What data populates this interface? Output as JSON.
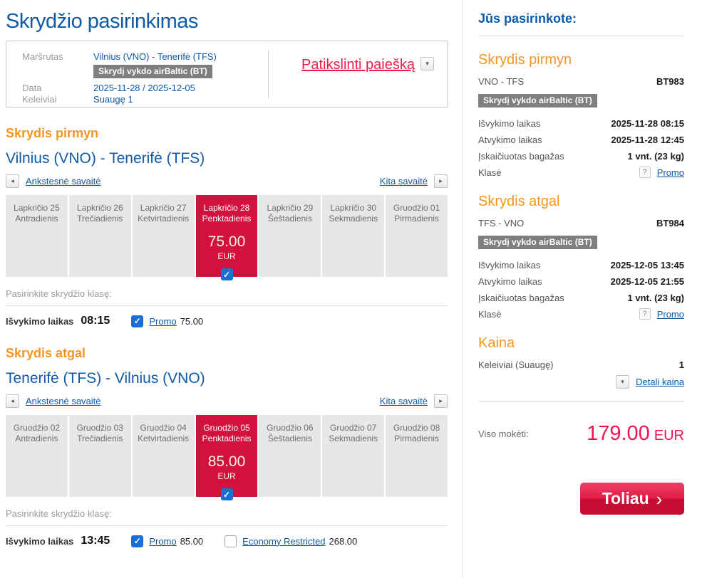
{
  "icons": {
    "prev_arrow": "◂",
    "next_arrow": "▸",
    "dropdown_arrow": "▾",
    "check": "✓",
    "question": "?",
    "button_chevron": "›"
  },
  "page": {
    "title": "Skrydžio pasirinkimas"
  },
  "search": {
    "route_label": "Maršrutas",
    "route_value": "Vilnius (VNO) - Tenerifė (TFS)",
    "operator_badge": "Skrydį vykdo airBaltic (BT)",
    "date_label": "Data",
    "date_value": "2025-11-28 / 2025-12-05",
    "passengers_label": "Keleiviai",
    "passengers_value": "Suaugę 1",
    "refine_link": "Patikslinti paiešką"
  },
  "outbound": {
    "section_title": "Skrydis pirmyn",
    "route": "Vilnius (VNO) - Tenerifė (TFS)",
    "prev_week": "Ankstesnė savaitė",
    "next_week": "Kita savaitė",
    "days": [
      {
        "date": "Lapkričio 25",
        "weekday": "Antradienis"
      },
      {
        "date": "Lapkričio 26",
        "weekday": "Trečiadienis"
      },
      {
        "date": "Lapkričio 27",
        "weekday": "Ketvirtadienis"
      },
      {
        "date": "Lapkričio 28",
        "weekday": "Penktadienis",
        "price": "75.00",
        "currency": "EUR",
        "selected": true
      },
      {
        "date": "Lapkričio 29",
        "weekday": "Šeštadienis"
      },
      {
        "date": "Lapkričio 30",
        "weekday": "Sekmadienis"
      },
      {
        "date": "Gruodžio 01",
        "weekday": "Pirmadienis"
      }
    ],
    "class_prompt": "Pasirinkite skrydžio klasę:",
    "departure_label": "Išvykimo laikas",
    "departure_time": "08:15",
    "options": [
      {
        "name": "Promo",
        "price": "75.00",
        "checked": true
      }
    ]
  },
  "inbound": {
    "section_title": "Skrydis atgal",
    "route": "Tenerifė (TFS) - Vilnius (VNO)",
    "prev_week": "Ankstesnė savaitė",
    "next_week": "Kita savaitė",
    "days": [
      {
        "date": "Gruodžio 02",
        "weekday": "Antradienis"
      },
      {
        "date": "Gruodžio 03",
        "weekday": "Trečiadienis"
      },
      {
        "date": "Gruodžio 04",
        "weekday": "Ketvirtadienis"
      },
      {
        "date": "Gruodžio 05",
        "weekday": "Penktadienis",
        "price": "85.00",
        "currency": "EUR",
        "selected": true
      },
      {
        "date": "Gruodžio 06",
        "weekday": "Šeštadienis"
      },
      {
        "date": "Gruodžio 07",
        "weekday": "Sekmadienis"
      },
      {
        "date": "Gruodžio 08",
        "weekday": "Pirmadienis"
      }
    ],
    "class_prompt": "Pasirinkite skrydžio klasę:",
    "departure_label": "Išvykimo laikas",
    "departure_time": "13:45",
    "options": [
      {
        "name": "Promo",
        "price": "85.00",
        "checked": true
      },
      {
        "name": "Economy Restricted",
        "price": "268.00",
        "checked": false
      }
    ]
  },
  "summary": {
    "title": "Jūs pasirinkote:",
    "outbound": {
      "section_title": "Skrydis pirmyn",
      "route": "VNO - TFS",
      "flight_number": "BT983",
      "operator_badge": "Skrydį vykdo airBaltic (BT)",
      "departure_label": "Išvykimo laikas",
      "departure_value": "2025-11-28 08:15",
      "arrival_label": "Atvykimo laikas",
      "arrival_value": "2025-11-28 12:45",
      "baggage_label": "Įskaičiuotas bagažas",
      "baggage_value": "1 vnt. (23 kg)",
      "class_label": "Klasė",
      "class_value": "Promo"
    },
    "inbound": {
      "section_title": "Skrydis atgal",
      "route": "TFS - VNO",
      "flight_number": "BT984",
      "operator_badge": "Skrydį vykdo airBaltic (BT)",
      "departure_label": "Išvykimo laikas",
      "departure_value": "2025-12-05 13:45",
      "arrival_label": "Atvykimo laikas",
      "arrival_value": "2025-12-05 21:55",
      "baggage_label": "Įskaičiuotas bagažas",
      "baggage_value": "1 vnt. (23 kg)",
      "class_label": "Klasė",
      "class_value": "Promo"
    },
    "price": {
      "section_title": "Kaina",
      "passengers_label": "Keleiviai (Suaugę)",
      "passengers_value": "1",
      "details_link": "Detali kaina",
      "total_label": "Viso mokėti:",
      "total_amount": "179.00",
      "total_currency": "EUR"
    },
    "next_button": "Toliau"
  },
  "colors": {
    "blue": "#0d5aa7",
    "orange": "#f7941d",
    "red": "#ed1c49",
    "calendar_red": "#d2113d",
    "checkbox_blue": "#1a6ed8"
  }
}
